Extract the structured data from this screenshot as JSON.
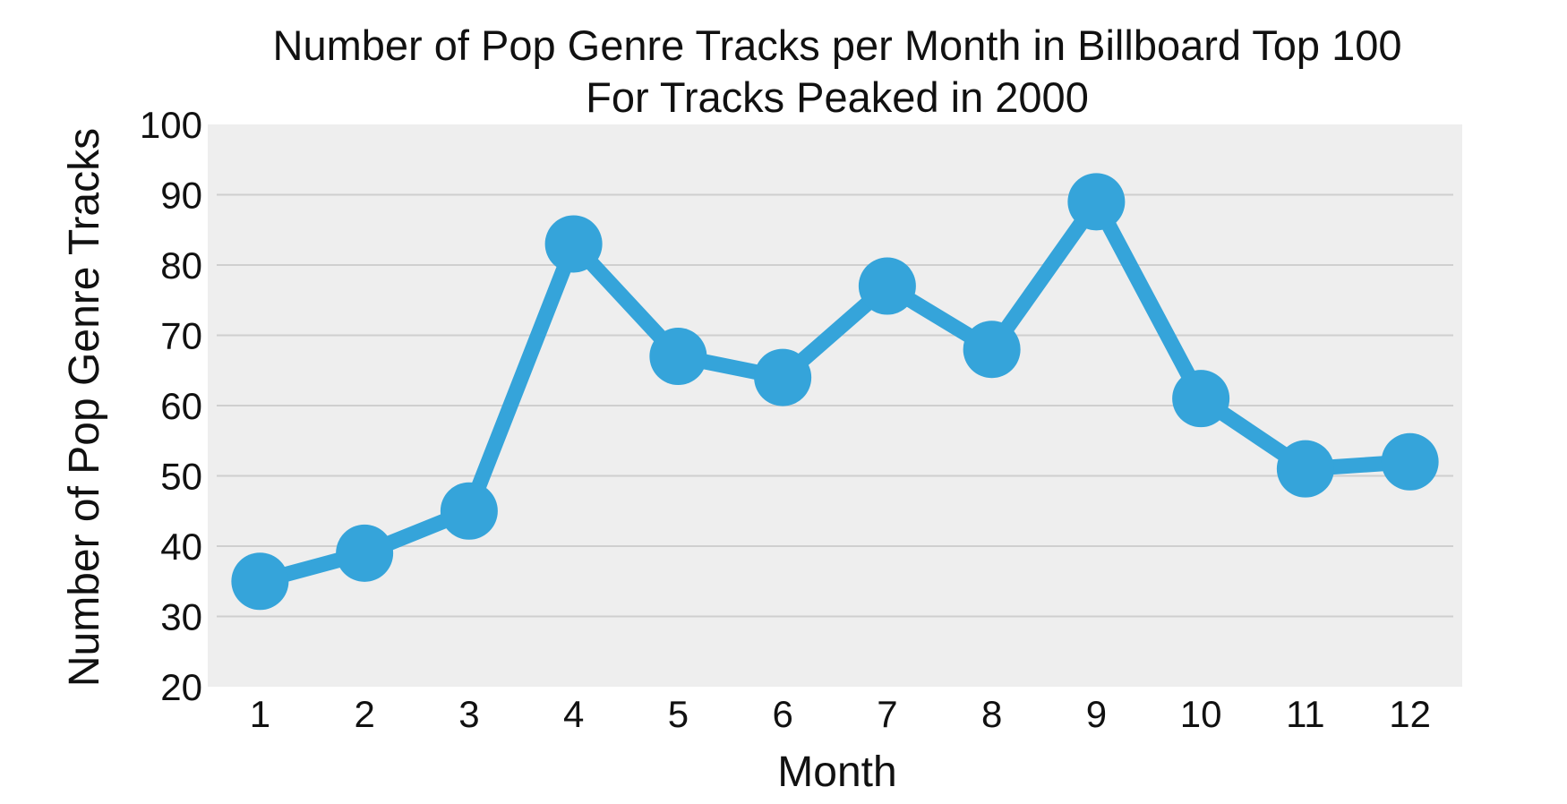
{
  "chart_data": {
    "type": "line",
    "title_lines": [
      "Number of Pop Genre Tracks per Month in Billboard Top 100",
      "For Tracks Peaked in 2000"
    ],
    "xlabel": "Month",
    "ylabel": "Number of Pop Genre Tracks",
    "x": [
      1,
      2,
      3,
      4,
      5,
      6,
      7,
      8,
      9,
      10,
      11,
      12
    ],
    "x_tick_labels": [
      "1",
      "2",
      "3",
      "4",
      "5",
      "6",
      "7",
      "8",
      "9",
      "10",
      "11",
      "12"
    ],
    "y_ticks": [
      20,
      30,
      40,
      50,
      60,
      70,
      80,
      90,
      100
    ],
    "y_tick_labels": [
      "20",
      "30",
      "40",
      "50",
      "60",
      "70",
      "80",
      "90",
      "100"
    ],
    "series": [
      {
        "values": [
          35,
          39,
          45,
          83,
          67,
          64,
          77,
          68,
          89,
          61,
          51,
          52
        ],
        "color": "#35a4da"
      }
    ],
    "xlim": [
      0.5,
      12.5
    ],
    "ylim": [
      20,
      100
    ],
    "grid": true,
    "background_color": "#eeeeee",
    "grid_color": "#cfcfcf"
  }
}
